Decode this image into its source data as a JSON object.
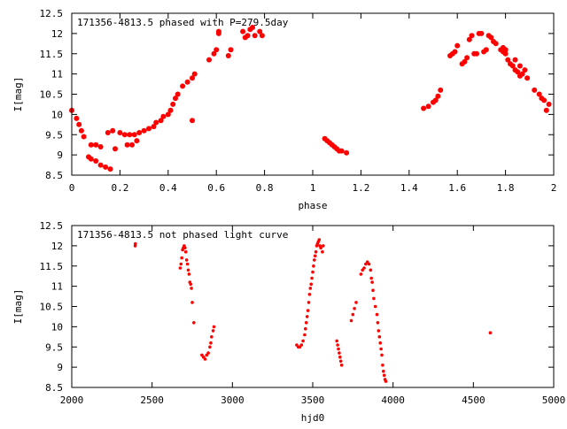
{
  "chart_data": [
    {
      "type": "scatter",
      "title": "171356-4813.5 phased with P=279.5day",
      "xlabel": "phase",
      "ylabel": "I[mag]",
      "xlim": [
        0,
        2
      ],
      "ylim": [
        12.5,
        8.5
      ],
      "y_inverted": true,
      "grid": false,
      "legend": "none",
      "marker_color": "#ff0000",
      "xticks": [
        "0",
        "0.2",
        "0.4",
        "0.6",
        "0.8",
        "1",
        "1.2",
        "1.4",
        "1.6",
        "1.8",
        "2"
      ],
      "yticks": [
        "8.5",
        "9",
        "9.5",
        "10",
        "10.5",
        "11",
        "11.5",
        "12",
        "12.5"
      ],
      "series": [
        {
          "points": [
            [
              0.0,
              10.1
            ],
            [
              0.02,
              9.9
            ],
            [
              0.03,
              9.75
            ],
            [
              0.04,
              9.6
            ],
            [
              0.05,
              9.45
            ],
            [
              0.07,
              8.95
            ],
            [
              0.08,
              8.9
            ],
            [
              0.1,
              8.85
            ],
            [
              0.12,
              8.75
            ],
            [
              0.14,
              8.7
            ],
            [
              0.16,
              8.65
            ],
            [
              0.18,
              9.15
            ],
            [
              0.08,
              9.25
            ],
            [
              0.1,
              9.25
            ],
            [
              0.12,
              9.2
            ],
            [
              0.15,
              9.55
            ],
            [
              0.17,
              9.6
            ],
            [
              0.2,
              9.55
            ],
            [
              0.22,
              9.5
            ],
            [
              0.24,
              9.5
            ],
            [
              0.26,
              9.5
            ],
            [
              0.28,
              9.55
            ],
            [
              0.3,
              9.6
            ],
            [
              0.32,
              9.65
            ],
            [
              0.34,
              9.7
            ],
            [
              0.35,
              9.8
            ],
            [
              0.37,
              9.85
            ],
            [
              0.38,
              9.95
            ],
            [
              0.4,
              10.0
            ],
            [
              0.41,
              10.1
            ],
            [
              0.42,
              10.25
            ],
            [
              0.43,
              10.4
            ],
            [
              0.44,
              10.5
            ],
            [
              0.46,
              10.7
            ],
            [
              0.48,
              10.8
            ],
            [
              0.5,
              10.9
            ],
            [
              0.51,
              11.0
            ],
            [
              0.23,
              9.25
            ],
            [
              0.25,
              9.25
            ],
            [
              0.27,
              9.35
            ],
            [
              0.5,
              9.85
            ],
            [
              0.57,
              11.35
            ],
            [
              0.59,
              11.5
            ],
            [
              0.6,
              11.6
            ],
            [
              0.61,
              12.0
            ],
            [
              0.61,
              12.05
            ],
            [
              0.65,
              11.45
            ],
            [
              0.66,
              11.6
            ],
            [
              0.71,
              12.05
            ],
            [
              0.72,
              11.9
            ],
            [
              0.73,
              11.95
            ],
            [
              0.74,
              12.1
            ],
            [
              0.75,
              12.15
            ],
            [
              0.76,
              11.95
            ],
            [
              0.78,
              12.05
            ],
            [
              0.79,
              11.95
            ],
            [
              1.05,
              9.4
            ],
            [
              1.06,
              9.35
            ],
            [
              1.07,
              9.3
            ],
            [
              1.08,
              9.25
            ],
            [
              1.09,
              9.2
            ],
            [
              1.1,
              9.15
            ],
            [
              1.11,
              9.1
            ],
            [
              1.12,
              9.1
            ],
            [
              1.14,
              9.05
            ],
            [
              1.46,
              10.15
            ],
            [
              1.48,
              10.2
            ],
            [
              1.5,
              10.3
            ],
            [
              1.51,
              10.35
            ],
            [
              1.52,
              10.45
            ],
            [
              1.53,
              10.6
            ],
            [
              1.57,
              11.45
            ],
            [
              1.58,
              11.5
            ],
            [
              1.59,
              11.55
            ],
            [
              1.6,
              11.7
            ],
            [
              1.62,
              11.25
            ],
            [
              1.63,
              11.3
            ],
            [
              1.64,
              11.4
            ],
            [
              1.65,
              11.85
            ],
            [
              1.66,
              11.95
            ],
            [
              1.67,
              11.5
            ],
            [
              1.68,
              11.5
            ],
            [
              1.69,
              12.0
            ],
            [
              1.7,
              12.0
            ],
            [
              1.71,
              11.55
            ],
            [
              1.72,
              11.6
            ],
            [
              1.73,
              11.95
            ],
            [
              1.74,
              11.9
            ],
            [
              1.75,
              11.8
            ],
            [
              1.76,
              11.75
            ],
            [
              1.78,
              11.6
            ],
            [
              1.79,
              11.55
            ],
            [
              1.8,
              11.5
            ],
            [
              1.81,
              11.35
            ],
            [
              1.82,
              11.25
            ],
            [
              1.83,
              11.2
            ],
            [
              1.84,
              11.1
            ],
            [
              1.85,
              11.05
            ],
            [
              1.86,
              10.95
            ],
            [
              1.87,
              11.0
            ],
            [
              1.88,
              11.1
            ],
            [
              1.89,
              10.9
            ],
            [
              1.92,
              10.6
            ],
            [
              1.94,
              10.5
            ],
            [
              1.95,
              10.4
            ],
            [
              1.96,
              10.35
            ],
            [
              1.97,
              10.1
            ],
            [
              1.98,
              10.25
            ],
            [
              1.79,
              11.65
            ],
            [
              1.8,
              11.6
            ],
            [
              1.84,
              11.35
            ],
            [
              1.86,
              11.2
            ]
          ]
        }
      ]
    },
    {
      "type": "scatter",
      "title": "171356-4813.5 not phased light curve",
      "xlabel": "hjd0",
      "ylabel": "I[mag]",
      "xlim": [
        2000,
        5000
      ],
      "ylim": [
        12.5,
        8.5
      ],
      "y_inverted": true,
      "grid": false,
      "legend": "none",
      "marker_color": "#ff0000",
      "xticks": [
        "2000",
        "2500",
        "3000",
        "3500",
        "4000",
        "4500",
        "5000"
      ],
      "yticks": [
        "8.5",
        "9",
        "9.5",
        "10",
        "10.5",
        "11",
        "11.5",
        "12",
        "12.5"
      ],
      "series": [
        {
          "points": [
            [
              2395,
              12.0
            ],
            [
              2396,
              12.05
            ],
            [
              2675,
              11.45
            ],
            [
              2680,
              11.55
            ],
            [
              2685,
              11.7
            ],
            [
              2690,
              11.9
            ],
            [
              2695,
              11.95
            ],
            [
              2700,
              12.0
            ],
            [
              2705,
              11.95
            ],
            [
              2710,
              11.85
            ],
            [
              2715,
              11.65
            ],
            [
              2720,
              11.55
            ],
            [
              2725,
              11.4
            ],
            [
              2730,
              11.3
            ],
            [
              2735,
              11.1
            ],
            [
              2740,
              11.05
            ],
            [
              2745,
              10.95
            ],
            [
              2750,
              10.6
            ],
            [
              2760,
              10.1
            ],
            [
              2810,
              9.3
            ],
            [
              2820,
              9.25
            ],
            [
              2830,
              9.2
            ],
            [
              2840,
              9.3
            ],
            [
              2850,
              9.35
            ],
            [
              2860,
              9.5
            ],
            [
              2865,
              9.6
            ],
            [
              2870,
              9.75
            ],
            [
              2880,
              9.9
            ],
            [
              2885,
              10.0
            ],
            [
              3400,
              9.55
            ],
            [
              3410,
              9.5
            ],
            [
              3420,
              9.5
            ],
            [
              3430,
              9.55
            ],
            [
              3440,
              9.65
            ],
            [
              3450,
              9.8
            ],
            [
              3455,
              9.95
            ],
            [
              3460,
              10.1
            ],
            [
              3465,
              10.25
            ],
            [
              3470,
              10.4
            ],
            [
              3475,
              10.6
            ],
            [
              3480,
              10.8
            ],
            [
              3485,
              10.95
            ],
            [
              3490,
              11.05
            ],
            [
              3495,
              11.2
            ],
            [
              3500,
              11.35
            ],
            [
              3505,
              11.5
            ],
            [
              3510,
              11.65
            ],
            [
              3515,
              11.75
            ],
            [
              3520,
              11.85
            ],
            [
              3525,
              12.0
            ],
            [
              3530,
              12.05
            ],
            [
              3535,
              12.1
            ],
            [
              3540,
              12.15
            ],
            [
              3545,
              12.0
            ],
            [
              3550,
              11.95
            ],
            [
              3560,
              11.85
            ],
            [
              3565,
              12.0
            ],
            [
              3650,
              9.65
            ],
            [
              3655,
              9.55
            ],
            [
              3660,
              9.45
            ],
            [
              3665,
              9.35
            ],
            [
              3670,
              9.25
            ],
            [
              3675,
              9.15
            ],
            [
              3680,
              9.05
            ],
            [
              3740,
              10.15
            ],
            [
              3750,
              10.3
            ],
            [
              3760,
              10.45
            ],
            [
              3770,
              10.6
            ],
            [
              3800,
              11.3
            ],
            [
              3810,
              11.4
            ],
            [
              3820,
              11.45
            ],
            [
              3830,
              11.55
            ],
            [
              3840,
              11.6
            ],
            [
              3850,
              11.55
            ],
            [
              3860,
              11.4
            ],
            [
              3865,
              11.2
            ],
            [
              3870,
              11.1
            ],
            [
              3875,
              10.9
            ],
            [
              3880,
              10.7
            ],
            [
              3890,
              10.5
            ],
            [
              3900,
              10.3
            ],
            [
              3905,
              10.1
            ],
            [
              3910,
              9.9
            ],
            [
              3915,
              9.75
            ],
            [
              3920,
              9.6
            ],
            [
              3925,
              9.45
            ],
            [
              3930,
              9.3
            ],
            [
              3935,
              9.05
            ],
            [
              3940,
              8.9
            ],
            [
              3945,
              8.8
            ],
            [
              3950,
              8.7
            ],
            [
              3955,
              8.65
            ],
            [
              4605,
              9.85
            ]
          ]
        }
      ]
    }
  ]
}
